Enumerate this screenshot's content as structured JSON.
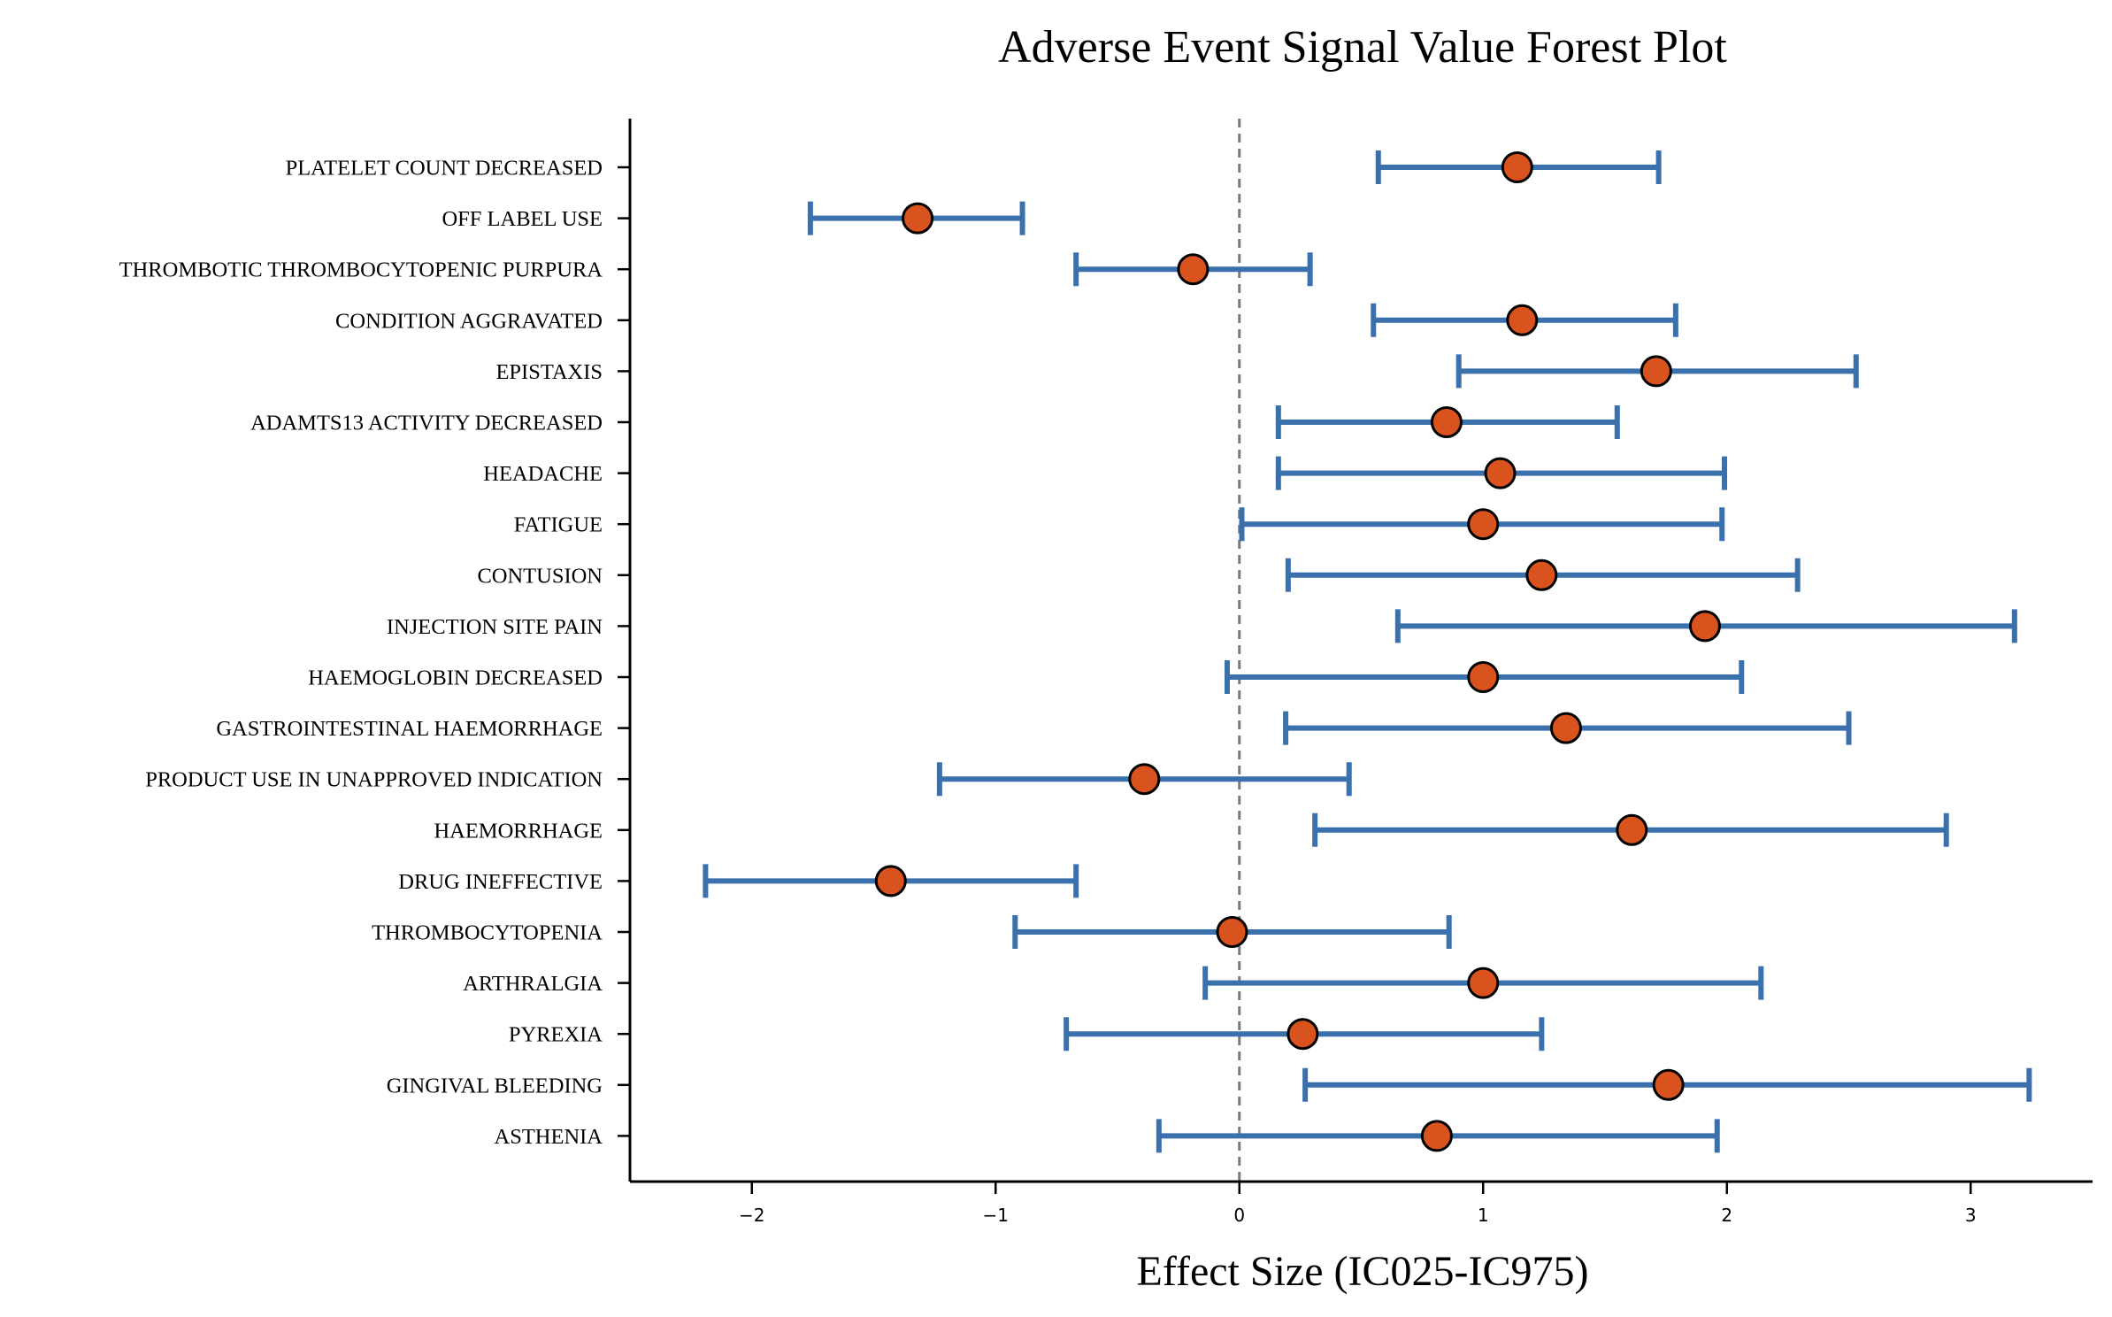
{
  "chart_data": {
    "type": "forest",
    "title": "Adverse Event Signal Value Forest Plot",
    "xlabel": "Effect Size (IC025-IC975)",
    "ylabel": "",
    "xlim": [
      -2.5,
      3.5
    ],
    "xticks": [
      -2,
      -1,
      0,
      1,
      2,
      3
    ],
    "xtick_labels": [
      "−2",
      "−1",
      "0",
      "1",
      "2",
      "3"
    ],
    "reference_line": 0,
    "grid": false,
    "point_color": "#d9531e",
    "ci_color": "#3a70ab",
    "rows": [
      {
        "label": "PLATELET COUNT DECREASED",
        "value": 1.14,
        "lower": 0.57,
        "upper": 1.72
      },
      {
        "label": "OFF LABEL USE",
        "value": -1.32,
        "lower": -1.76,
        "upper": -0.89
      },
      {
        "label": "THROMBOTIC THROMBOCYTOPENIC PURPURA",
        "value": -0.19,
        "lower": -0.67,
        "upper": 0.29
      },
      {
        "label": "CONDITION AGGRAVATED",
        "value": 1.16,
        "lower": 0.55,
        "upper": 1.79
      },
      {
        "label": "EPISTAXIS",
        "value": 1.71,
        "lower": 0.9,
        "upper": 2.53
      },
      {
        "label": "ADAMTS13 ACTIVITY DECREASED",
        "value": 0.85,
        "lower": 0.16,
        "upper": 1.55
      },
      {
        "label": "HEADACHE",
        "value": 1.07,
        "lower": 0.16,
        "upper": 1.99
      },
      {
        "label": "FATIGUE",
        "value": 1.0,
        "lower": 0.01,
        "upper": 1.98
      },
      {
        "label": "CONTUSION",
        "value": 1.24,
        "lower": 0.2,
        "upper": 2.29
      },
      {
        "label": "INJECTION SITE PAIN",
        "value": 1.91,
        "lower": 0.65,
        "upper": 3.18
      },
      {
        "label": "HAEMOGLOBIN DECREASED",
        "value": 1.0,
        "lower": -0.05,
        "upper": 2.06
      },
      {
        "label": "GASTROINTESTINAL HAEMORRHAGE",
        "value": 1.34,
        "lower": 0.19,
        "upper": 2.5
      },
      {
        "label": "PRODUCT USE IN UNAPPROVED INDICATION",
        "value": -0.39,
        "lower": -1.23,
        "upper": 0.45
      },
      {
        "label": "HAEMORRHAGE",
        "value": 1.61,
        "lower": 0.31,
        "upper": 2.9
      },
      {
        "label": "DRUG INEFFECTIVE",
        "value": -1.43,
        "lower": -2.19,
        "upper": -0.67
      },
      {
        "label": "THROMBOCYTOPENIA",
        "value": -0.03,
        "lower": -0.92,
        "upper": 0.86
      },
      {
        "label": "ARTHRALGIA",
        "value": 1.0,
        "lower": -0.14,
        "upper": 2.14
      },
      {
        "label": "PYREXIA",
        "value": 0.26,
        "lower": -0.71,
        "upper": 1.24
      },
      {
        "label": "GINGIVAL BLEEDING",
        "value": 1.76,
        "lower": 0.27,
        "upper": 3.24
      },
      {
        "label": "ASTHENIA",
        "value": 0.81,
        "lower": -0.33,
        "upper": 1.96
      }
    ]
  }
}
